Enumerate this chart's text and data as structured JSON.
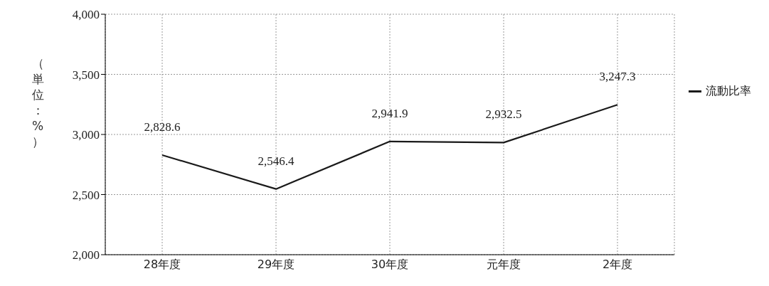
{
  "chart_data": {
    "type": "line",
    "ylabel": "（単位：%）",
    "categories": [
      "28年度",
      "29年度",
      "30年度",
      "元年度",
      "2年度"
    ],
    "series": [
      {
        "name": "流動比率",
        "color": "#1a1a1a",
        "values": [
          2828.6,
          2546.4,
          2941.9,
          2932.5,
          3247.3
        ]
      }
    ],
    "ylim": [
      2000,
      4000
    ],
    "yticks": [
      {
        "value": 2000,
        "label": "2,000"
      },
      {
        "value": 2500,
        "label": "2,500"
      },
      {
        "value": 3000,
        "label": "3,000"
      },
      {
        "value": 3500,
        "label": "3,500"
      },
      {
        "value": 4000,
        "label": "4,000"
      }
    ],
    "value_labels": [
      "2,828.6",
      "2,546.4",
      "2,941.9",
      "2,932.5",
      "3,247.3"
    ],
    "grid": true,
    "legend": "right",
    "marker": "none",
    "line_style": "solid"
  }
}
